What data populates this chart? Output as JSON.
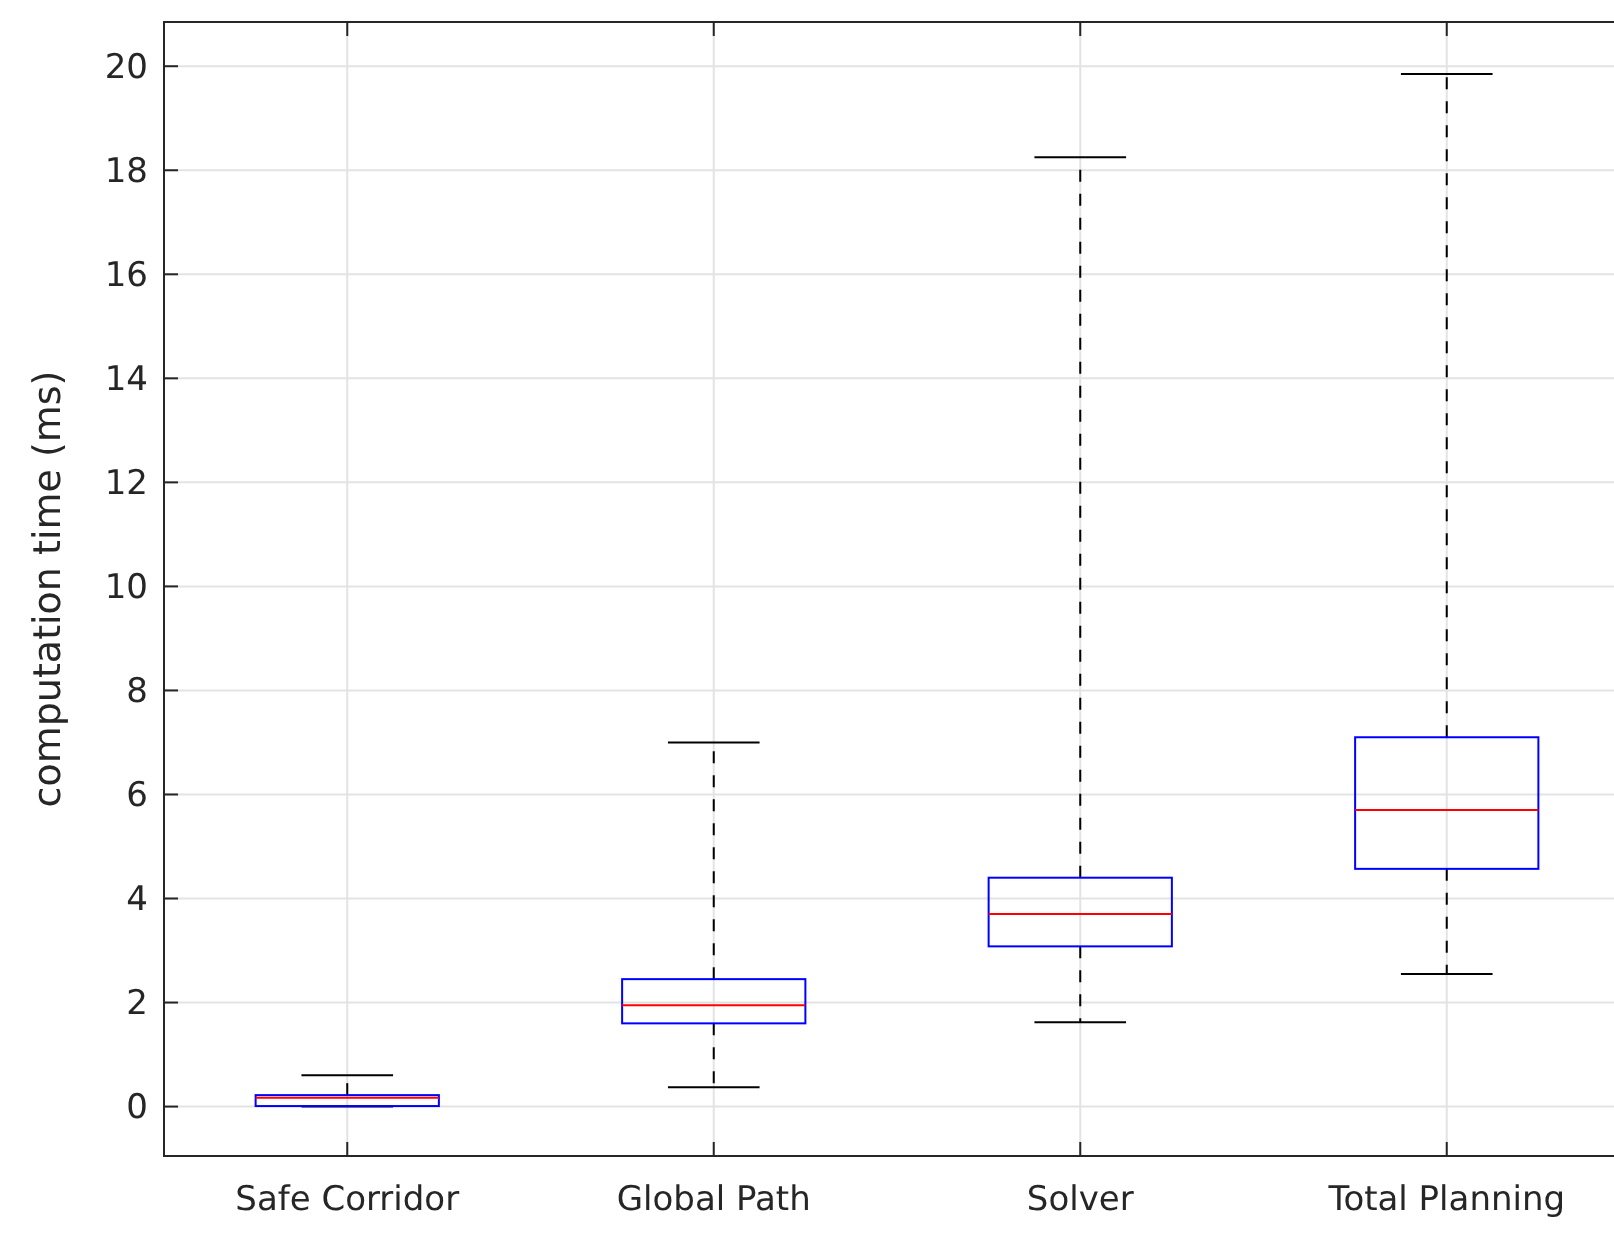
{
  "chart_data": {
    "type": "box",
    "ylabel": "computation time (ms)",
    "categories": [
      "Safe Corridor",
      "Global Path",
      "Solver",
      "Total Planning"
    ],
    "boxes": [
      {
        "low": 0,
        "q1": 0.01,
        "median": 0.17,
        "q3": 0.22,
        "high": 0.6
      },
      {
        "low": 0.37,
        "q1": 1.6,
        "median": 1.95,
        "q3": 2.45,
        "high": 7.0
      },
      {
        "low": 1.62,
        "q1": 3.08,
        "median": 3.7,
        "q3": 4.4,
        "high": 18.25
      },
      {
        "low": 2.55,
        "q1": 4.57,
        "median": 5.7,
        "q3": 7.1,
        "high": 19.85
      }
    ],
    "color": "#0000ff",
    "ylim": [
      -0.95,
      20.85
    ],
    "yticks": [
      0,
      2,
      4,
      6,
      8,
      10,
      12,
      14,
      16,
      18,
      20
    ],
    "grid": true
  }
}
